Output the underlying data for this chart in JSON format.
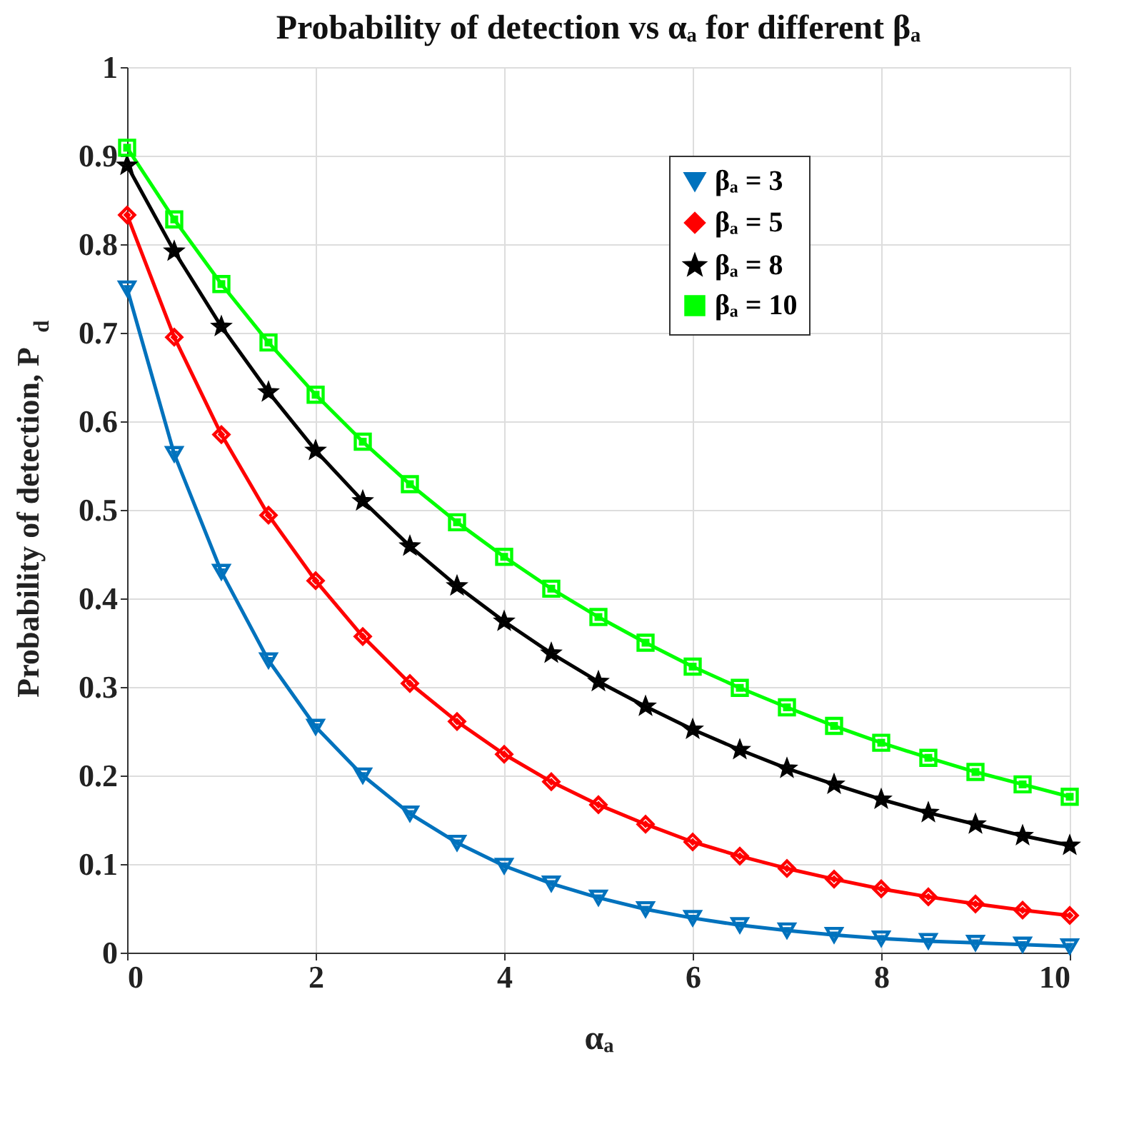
{
  "chart_data": {
    "type": "line",
    "title": "Probability of detection vs αₐ for different βₐ",
    "xlabel": "αₐ",
    "ylabel": "Probability of detection, P$_{d}$",
    "x": [
      0,
      0.5,
      1,
      1.5,
      2,
      2.5,
      3,
      3.5,
      4,
      4.5,
      5,
      5.5,
      6,
      6.5,
      7,
      7.5,
      8,
      8.5,
      9,
      9.5,
      10
    ],
    "series": [
      {
        "name": "βₐ = 3",
        "color": "#0072bd",
        "marker": "triangle",
        "values": [
          0.75,
          0.563,
          0.43,
          0.33,
          0.255,
          0.2,
          0.157,
          0.124,
          0.098,
          0.078,
          0.062,
          0.049,
          0.039,
          0.031,
          0.025,
          0.02,
          0.016,
          0.013,
          0.011,
          0.009,
          0.007
        ]
      },
      {
        "name": "βₐ = 5",
        "color": "#ff0000",
        "marker": "diamond",
        "values": [
          0.833,
          0.695,
          0.585,
          0.494,
          0.42,
          0.357,
          0.304,
          0.261,
          0.224,
          0.193,
          0.167,
          0.145,
          0.125,
          0.109,
          0.095,
          0.083,
          0.072,
          0.063,
          0.055,
          0.048,
          0.042
        ]
      },
      {
        "name": "βₐ = 8",
        "color": "#000000",
        "marker": "star",
        "values": [
          0.889,
          0.792,
          0.707,
          0.633,
          0.567,
          0.51,
          0.459,
          0.414,
          0.374,
          0.338,
          0.306,
          0.278,
          0.252,
          0.229,
          0.208,
          0.19,
          0.173,
          0.158,
          0.145,
          0.132,
          0.121
        ]
      },
      {
        "name": "βₐ = 10",
        "color": "#00ff00",
        "marker": "square",
        "values": [
          0.909,
          0.828,
          0.755,
          0.689,
          0.63,
          0.577,
          0.529,
          0.486,
          0.447,
          0.411,
          0.379,
          0.35,
          0.323,
          0.299,
          0.277,
          0.256,
          0.237,
          0.22,
          0.204,
          0.19,
          0.176
        ]
      }
    ],
    "xlim": [
      0,
      10
    ],
    "xticks": [
      0,
      2,
      4,
      6,
      8,
      10
    ],
    "ylim": [
      0,
      1
    ],
    "yticks": [
      0,
      0.1,
      0.2,
      0.3,
      0.4,
      0.5,
      0.6,
      0.7,
      0.8,
      0.9,
      1
    ],
    "grid": true,
    "legend": "top right",
    "line_style": "solid"
  }
}
